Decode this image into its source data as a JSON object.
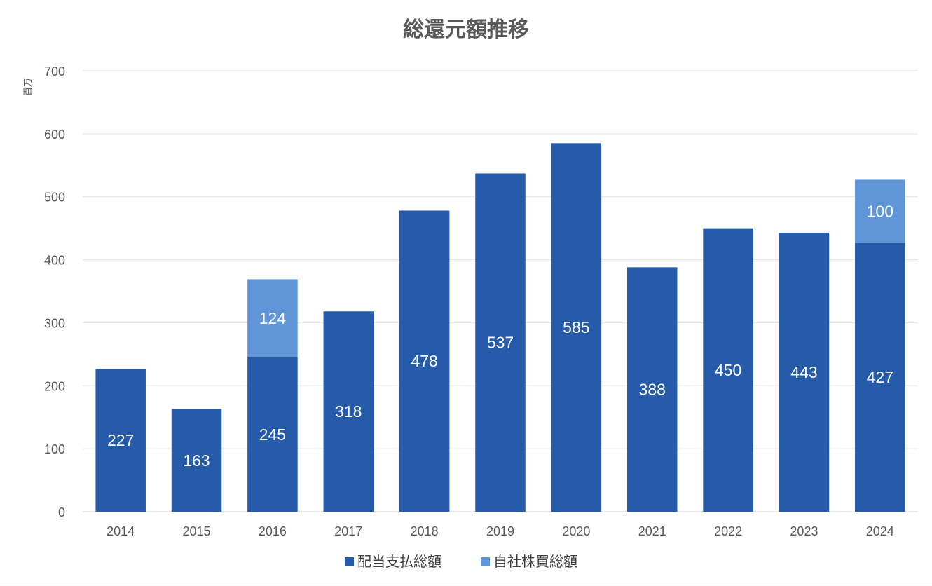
{
  "chart_data": {
    "type": "bar",
    "stacked": true,
    "title": "総還元額推移",
    "unit_label": "百万",
    "xlabel": "",
    "ylabel": "",
    "categories": [
      "2014",
      "2015",
      "2016",
      "2017",
      "2018",
      "2019",
      "2020",
      "2021",
      "2022",
      "2023",
      "2024"
    ],
    "ylim": [
      0,
      700
    ],
    "yticks": [
      0,
      100,
      200,
      300,
      400,
      500,
      600,
      700
    ],
    "grid": true,
    "legend_position": "bottom",
    "series": [
      {
        "name": "配当支払総額",
        "color": "#255BA8",
        "values": [
          227,
          163,
          245,
          318,
          478,
          537,
          585,
          388,
          450,
          443,
          427
        ]
      },
      {
        "name": "自社株買総額",
        "color": "#6095D7",
        "values": [
          null,
          null,
          124,
          null,
          null,
          null,
          null,
          null,
          null,
          null,
          100
        ]
      }
    ]
  }
}
